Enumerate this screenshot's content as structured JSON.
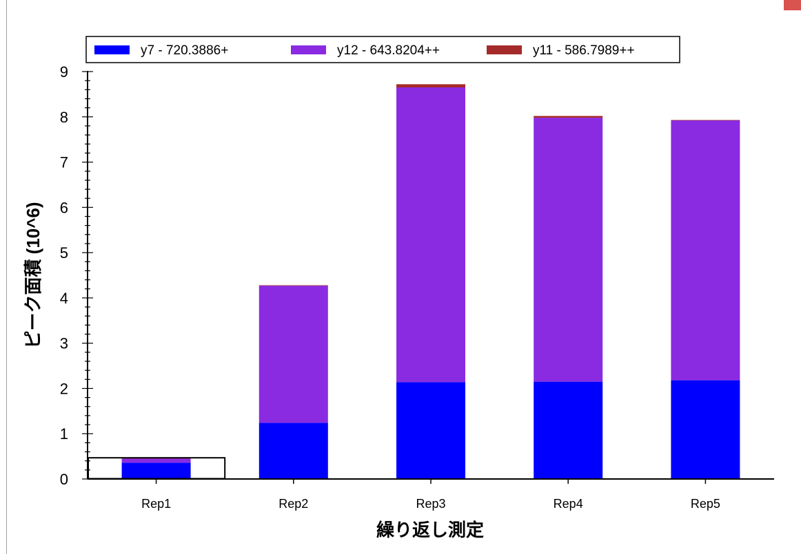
{
  "chart_data": {
    "type": "bar",
    "stacked": true,
    "categories": [
      "Rep1",
      "Rep2",
      "Rep3",
      "Rep4",
      "Rep5"
    ],
    "series": [
      {
        "name": "y7 - 720.3886+",
        "color": "#0000ff",
        "values": [
          0.36,
          1.24,
          2.14,
          2.15,
          2.18
        ]
      },
      {
        "name": "y12 - 643.8204++",
        "color": "#8a2be2",
        "values": [
          0.09,
          3.03,
          6.51,
          5.83,
          5.74
        ]
      },
      {
        "name": "y11 - 586.7989++",
        "color": "#a52a2a",
        "values": [
          0.01,
          0.01,
          0.07,
          0.04,
          0.01
        ]
      }
    ],
    "yticks": [
      0,
      1,
      2,
      3,
      4,
      5,
      6,
      7,
      8,
      9
    ],
    "ylim": [
      0,
      9
    ],
    "xlabel": "繰り返し測定",
    "ylabel": "ピーク面積 (10^6)",
    "legend_position": "top",
    "highlighted_category": "Rep1",
    "grid": false
  }
}
